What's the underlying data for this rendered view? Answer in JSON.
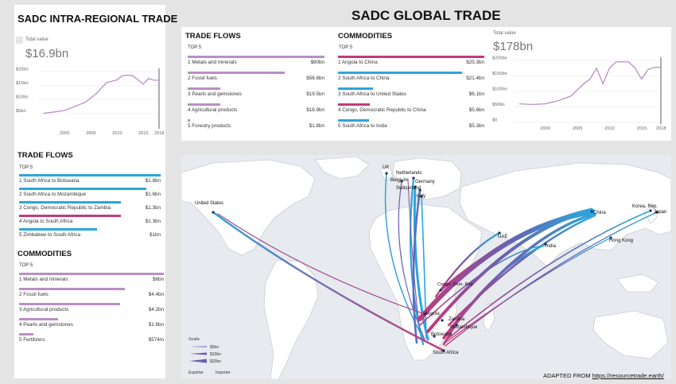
{
  "global_title": "SADC GLOBAL TRADE",
  "intra": {
    "title": "SADC INTRA-REGIONAL TRADE",
    "total_label": "Total value",
    "total_value": "$16.9bn",
    "trade_flows": {
      "heading": "TRADE FLOWS",
      "top_label": "TOP 5",
      "items": [
        {
          "rank": "1",
          "label": "South Africa to Botswana",
          "value": "$1.8bn",
          "frac": 1.0,
          "color": "#2aa7dc"
        },
        {
          "rank": "2",
          "label": "South Africa to Mozambique",
          "value": "$1.6bn",
          "frac": 0.9,
          "color": "#2aa7dc"
        },
        {
          "rank": "3",
          "label": "Congo, Democratic Republic to Zambia",
          "value": "$1.3bn",
          "frac": 0.72,
          "color": "#2aa7dc"
        },
        {
          "rank": "4",
          "label": "Angola to South Africa",
          "value": "$1.3bn",
          "frac": 0.72,
          "color": "#c4397c"
        },
        {
          "rank": "5",
          "label": "Zimbabwe to South Africa",
          "value": "$1bn",
          "frac": 0.55,
          "color": "#2aa7dc"
        }
      ]
    },
    "commodities": {
      "heading": "COMMODITIES",
      "top_label": "TOP 5",
      "items": [
        {
          "rank": "1",
          "label": "Metals and minerals",
          "value": "$6bn",
          "frac": 1.0
        },
        {
          "rank": "2",
          "label": "Fossil fuels",
          "value": "$4.4bn",
          "frac": 0.73
        },
        {
          "rank": "3",
          "label": "Agricultural products",
          "value": "$4.2bn",
          "frac": 0.7
        },
        {
          "rank": "4",
          "label": "Pearls and gemstones",
          "value": "$1.6bn",
          "frac": 0.27
        },
        {
          "rank": "5",
          "label": "Fertilizers",
          "value": "$574m",
          "frac": 0.1
        }
      ]
    }
  },
  "global": {
    "trade_flows": {
      "heading": "TRADE FLOWS",
      "top_label": "TOP 5",
      "items": [
        {
          "rank": "1",
          "label": "Metals and minerals",
          "value": "$80bn",
          "frac": 1.0
        },
        {
          "rank": "2",
          "label": "Fossil fuels",
          "value": "$56.6bn",
          "frac": 0.71
        },
        {
          "rank": "3",
          "label": "Pearls and gemstones",
          "value": "$19.5bn",
          "frac": 0.24
        },
        {
          "rank": "4",
          "label": "Agricultural products",
          "value": "$18.9bn",
          "frac": 0.24
        },
        {
          "rank": "5",
          "label": "Forestry products",
          "value": "$1.8bn",
          "frac": 0.02
        }
      ]
    },
    "commodities": {
      "heading": "COMMODITIES",
      "top_label": "TOP 5",
      "items": [
        {
          "rank": "1",
          "label": "Angola to China",
          "value": "$25.3bn",
          "frac": 1.0,
          "color": "#c4397c"
        },
        {
          "rank": "2",
          "label": "South Africa to China",
          "value": "$21.4bn",
          "frac": 0.85,
          "color": "#2aa7dc"
        },
        {
          "rank": "3",
          "label": "South Africa to United States",
          "value": "$6.1bn",
          "frac": 0.24,
          "color": "#2aa7dc"
        },
        {
          "rank": "4",
          "label": "Congo, Democratic Republic to China",
          "value": "$5.6bn",
          "frac": 0.22,
          "color": "#c4397c"
        },
        {
          "rank": "5",
          "label": "South Africa to India",
          "value": "$5.3bn",
          "frac": 0.21,
          "color": "#2aa7dc"
        }
      ]
    },
    "total_label": "Total value",
    "total_value": "$178bn"
  },
  "chart_data": [
    {
      "type": "line",
      "title": "SADC INTRA-REGIONAL TRADE",
      "x": [
        1996,
        1998,
        2000,
        2002,
        2004,
        2006,
        2008,
        2010,
        2011,
        2012,
        2013,
        2014,
        2015,
        2016,
        2017,
        2018
      ],
      "y": [
        5,
        5.5,
        6,
        7.5,
        9,
        12,
        16,
        17,
        18.5,
        18.7,
        18.5,
        17,
        15.5,
        17.5,
        16.9,
        16.9
      ],
      "xticks": [
        "2000",
        "2005",
        "2010",
        "2015",
        "2018"
      ],
      "yticks": [
        "$5bn",
        "$10bn",
        "$15bn",
        "$20bn"
      ],
      "ylim": [
        0,
        20
      ],
      "xlim": [
        1995,
        2018
      ],
      "accent": "#b98fc4"
    },
    {
      "type": "line",
      "title": "SADC GLOBAL TRADE",
      "x": [
        1996,
        1998,
        2000,
        2002,
        2004,
        2006,
        2007,
        2008,
        2009,
        2010,
        2011,
        2012,
        2013,
        2014,
        2015,
        2016,
        2017,
        2018
      ],
      "y": [
        60,
        58,
        60,
        70,
        85,
        125,
        140,
        175,
        125,
        175,
        195,
        196,
        195,
        175,
        140,
        170,
        178,
        178
      ],
      "xticks": [
        "2000",
        "2005",
        "2010",
        "2015",
        "2018"
      ],
      "yticks": [
        "$0",
        "$50bn",
        "$100bn",
        "$150bn",
        "$200bn"
      ],
      "ylim": [
        0,
        200
      ],
      "xlim": [
        1995,
        2018
      ],
      "accent": "#b98fc4"
    }
  ],
  "map": {
    "labels": [
      "UK",
      "Netherlands",
      "Belgium",
      "Germany",
      "Switzerland",
      "Italy",
      "United States",
      "China",
      "Korea, Rep.",
      "Japan",
      "UAE",
      "India",
      "Hong Kong",
      "Congo, Dem. Rep.",
      "Angola",
      "Zambia",
      "Mozambique",
      "Botswana",
      "South Africa"
    ],
    "scale_title": "Scale",
    "scale_items": [
      "$5bn",
      "$10bn",
      "$20bn"
    ],
    "exporter_label": "Exporter",
    "importer_label": "Importer",
    "colors": {
      "water": "#e7eaee",
      "land": "#ffffff",
      "exporter": "#c4397c",
      "importer": "#2aa7dc"
    }
  },
  "credit": {
    "prefix": "ADAPTED FROM ",
    "link": "https://resourcetrade.earth/"
  }
}
